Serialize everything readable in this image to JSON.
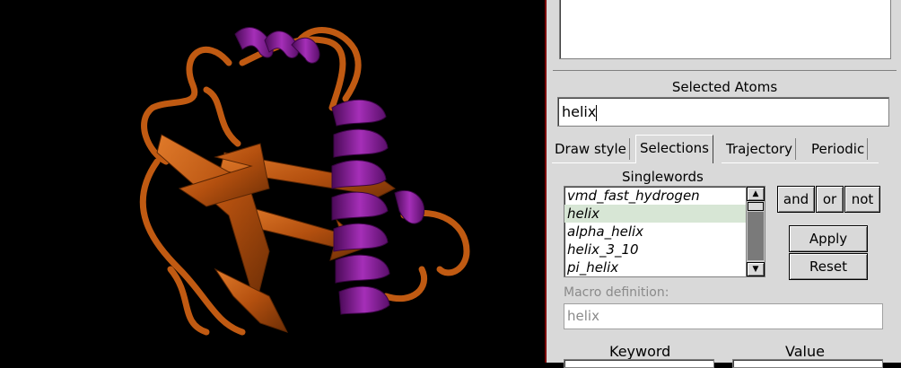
{
  "selected_atoms": {
    "header": "Selected Atoms",
    "value": "helix"
  },
  "tabs": [
    "Draw style",
    "Selections",
    "Trajectory",
    "Periodic"
  ],
  "singlewords": {
    "header": "Singlewords",
    "items": [
      "vmd_fast_hydrogen",
      "helix",
      "alpha_helix",
      "helix_3_10",
      "pi_helix"
    ],
    "selected_index": 1
  },
  "logic_buttons": [
    "and",
    "or",
    "not"
  ],
  "apply_label": "Apply",
  "reset_label": "Reset",
  "macro": {
    "label": "Macro definition:",
    "value": "helix"
  },
  "keyword_header": "Keyword",
  "value_header": "Value",
  "colors": {
    "strand": "#c05a12",
    "helix": "#8a1a9a",
    "panel": "#d9d9d9",
    "selected_row": "#d7e6d5"
  }
}
